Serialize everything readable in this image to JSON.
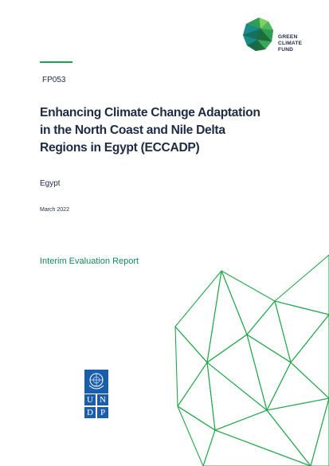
{
  "logo": {
    "lines": [
      "GREEN",
      "CLIMATE",
      "FUND"
    ],
    "colors": {
      "text": "#1f2a44",
      "dark": "#1e6b3c",
      "mid": "#2f9e55",
      "light": "#7fcf63",
      "teal": "#1a8a8a"
    }
  },
  "document": {
    "code": "FP053",
    "title_lines": [
      "Enhancing Climate Change Adaptation",
      "in the North Coast and Nile Delta",
      "Regions in Egypt (ECCADP)"
    ],
    "country": "Egypt",
    "date": "March 2022",
    "report_type": "Interim Evaluation Report"
  },
  "undp_logo": {
    "letters": [
      "U",
      "N",
      "D",
      "P"
    ],
    "color": "#1a5eab"
  },
  "colors": {
    "accent_green": "#1aa452",
    "report_type_green": "#128a5a",
    "text": "#1f2a44",
    "mesh_green": "#22a84a"
  }
}
